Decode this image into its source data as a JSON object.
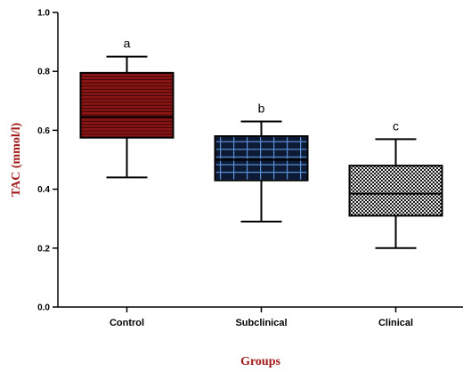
{
  "chart_data": {
    "type": "boxplot",
    "xlabel": "Groups",
    "ylabel": "TAC  (mmol/l)",
    "ylim": [
      0.0,
      1.0
    ],
    "yticks": [
      "0.0",
      "0.2",
      "0.4",
      "0.6",
      "0.8",
      "1.0"
    ],
    "grid": false,
    "categories": [
      "Control",
      "Subclinical",
      "Clinical"
    ],
    "boxes": [
      {
        "category": "Control",
        "min": 0.44,
        "q1": 0.575,
        "median": 0.645,
        "q3": 0.795,
        "max": 0.85,
        "letter": "a",
        "fill": "#8b1414",
        "pattern": "horizontal-lines"
      },
      {
        "category": "Subclinical",
        "min": 0.29,
        "q1": 0.43,
        "median": 0.5,
        "q3": 0.58,
        "max": 0.63,
        "letter": "b",
        "fill": "#0d1a33",
        "pattern": "blue-grid"
      },
      {
        "category": "Clinical",
        "min": 0.2,
        "q1": 0.31,
        "median": 0.385,
        "q3": 0.48,
        "max": 0.57,
        "letter": "c",
        "fill": "#1a1a1a",
        "pattern": "checker"
      }
    ]
  }
}
